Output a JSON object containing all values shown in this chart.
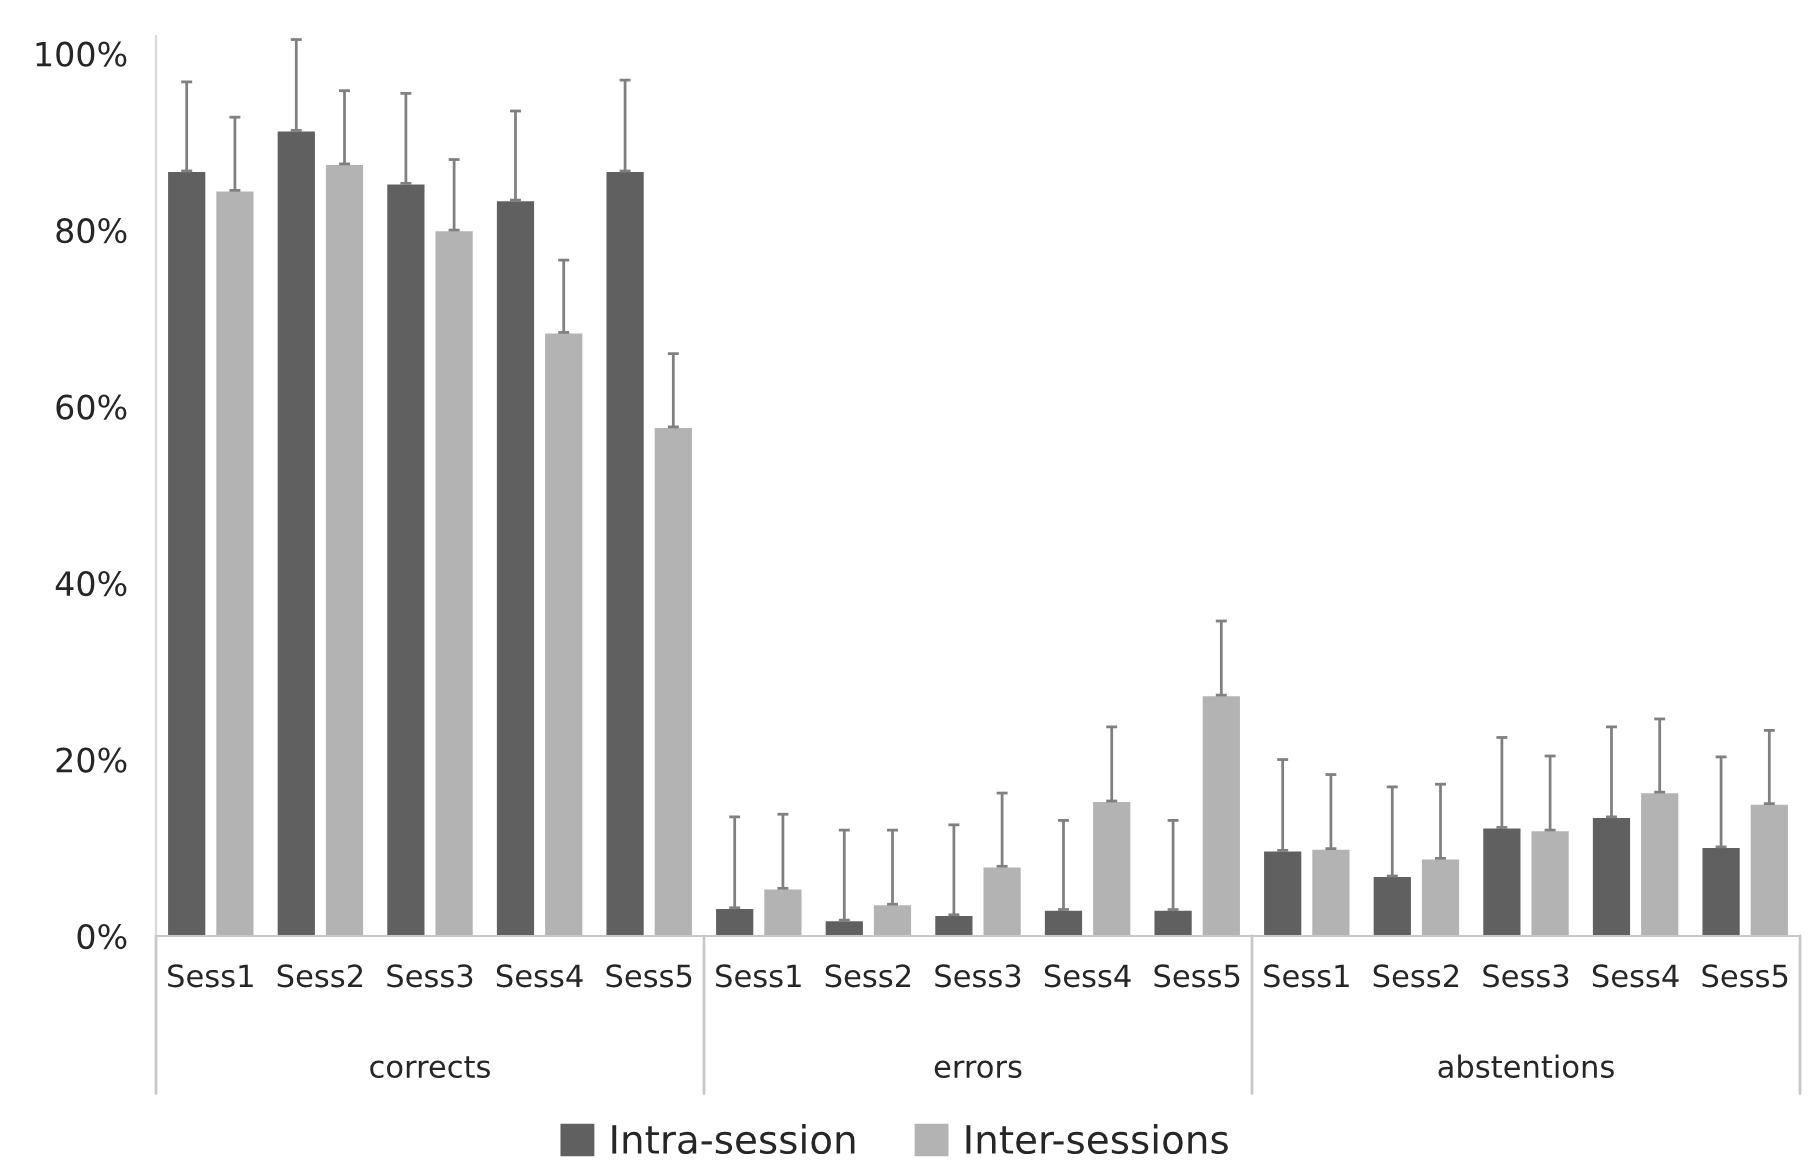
{
  "chart_data": {
    "type": "bar",
    "categories": [
      "Sess1",
      "Sess2",
      "Sess3",
      "Sess4",
      "Sess5",
      "Sess1",
      "Sess2",
      "Sess3",
      "Sess4",
      "Sess5",
      "Sess1",
      "Sess2",
      "Sess3",
      "Sess4",
      "Sess5"
    ],
    "series": [
      {
        "name": "Intra-session",
        "color": "#606060",
        "values": [
          86.7,
          91.3,
          85.3,
          83.4,
          86.7,
          3.2,
          1.8,
          2.4,
          3.0,
          3.0,
          9.7,
          6.8,
          12.3,
          13.5,
          10.1
        ],
        "errors": [
          [
            86.7,
            96.8
          ],
          [
            91.3,
            101.6
          ],
          [
            85.3,
            95.5
          ],
          [
            83.4,
            93.5
          ],
          [
            86.7,
            97
          ],
          [
            3.2,
            13.5
          ],
          [
            1.8,
            12
          ],
          [
            2.4,
            12.6
          ],
          [
            3.0,
            13.1
          ],
          [
            3.0,
            13.1
          ],
          [
            9.7,
            20
          ],
          [
            6.8,
            16.9
          ],
          [
            12.3,
            22.5
          ],
          [
            13.5,
            23.7
          ],
          [
            10.1,
            20.3
          ]
        ]
      },
      {
        "name": "Inter-sessions",
        "color": "#b3b3b3",
        "values": [
          84.5,
          87.5,
          80,
          68.4,
          57.7,
          5.4,
          3.6,
          7.9,
          15.3,
          27.3,
          9.9,
          8.8,
          12,
          16.3,
          15
        ],
        "errors": [
          [
            84.5,
            92.8
          ],
          [
            87.5,
            95.8
          ],
          [
            80,
            88
          ],
          [
            68.4,
            76.6
          ],
          [
            57.7,
            66
          ],
          [
            5.4,
            13.8
          ],
          [
            3.6,
            12
          ],
          [
            7.9,
            16.2
          ],
          [
            15.3,
            23.7
          ],
          [
            27.3,
            35.7
          ],
          [
            9.9,
            18.3
          ],
          [
            8.8,
            17.2
          ],
          [
            12,
            20.4
          ],
          [
            16.3,
            24.6
          ],
          [
            15,
            23.3
          ]
        ]
      }
    ],
    "annotations": [
      "corrects",
      "errors",
      "abstentions"
    ],
    "ylim": [
      0,
      102
    ],
    "yticks": [
      {
        "value": 0,
        "label": "0%"
      },
      {
        "value": 20,
        "label": "20%"
      },
      {
        "value": 40,
        "label": "40%"
      },
      {
        "value": 60,
        "label": "60%"
      },
      {
        "value": 80,
        "label": "80%"
      },
      {
        "value": 100,
        "label": "100%"
      }
    ],
    "grid": false,
    "legend": "bottom"
  }
}
